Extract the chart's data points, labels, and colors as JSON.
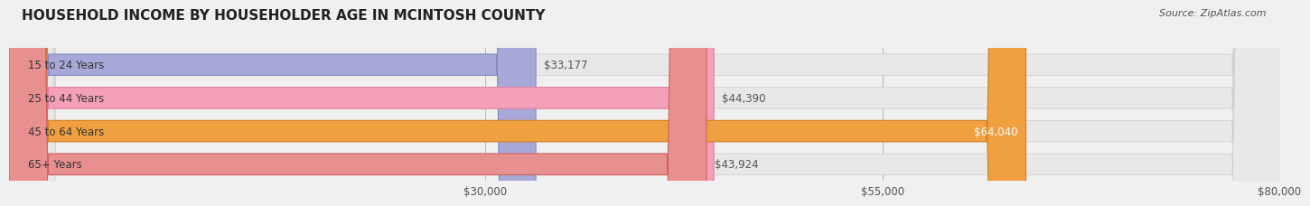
{
  "title": "HOUSEHOLD INCOME BY HOUSEHOLDER AGE IN MCINTOSH COUNTY",
  "source": "Source: ZipAtlas.com",
  "categories": [
    "15 to 24 Years",
    "25 to 44 Years",
    "45 to 64 Years",
    "65+ Years"
  ],
  "values": [
    33177,
    44390,
    64040,
    43924
  ],
  "bar_colors": [
    "#a8a8d8",
    "#f4a0b8",
    "#f0a040",
    "#e89090"
  ],
  "bar_edge_colors": [
    "#8888c0",
    "#e080a0",
    "#d08020",
    "#d06060"
  ],
  "label_colors": [
    "#555555",
    "#555555",
    "#ffffff",
    "#555555"
  ],
  "value_labels": [
    "$33,177",
    "$44,390",
    "$64,040",
    "$43,924"
  ],
  "xlim": [
    0,
    80000
  ],
  "xticks": [
    30000,
    55000,
    80000
  ],
  "xtick_labels": [
    "$30,000",
    "$55,000",
    "$80,000"
  ],
  "background_color": "#f0f0f0",
  "bar_bg_color": "#e8e8e8",
  "title_fontsize": 11,
  "source_fontsize": 8,
  "tick_fontsize": 8.5,
  "label_fontsize": 8.5,
  "value_fontsize": 8.5,
  "bar_height": 0.62,
  "figwidth": 14.06,
  "figheight": 2.33
}
